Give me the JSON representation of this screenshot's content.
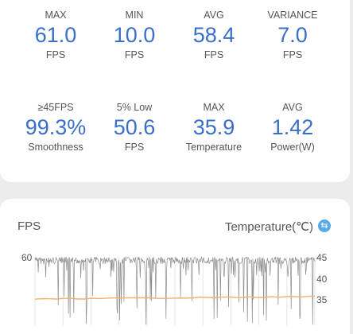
{
  "stats_row1": [
    {
      "label": "MAX",
      "value": "61.0",
      "unit": "FPS"
    },
    {
      "label": "MIN",
      "value": "10.0",
      "unit": "FPS"
    },
    {
      "label": "AVG",
      "value": "58.4",
      "unit": "FPS"
    },
    {
      "label": "VARIANCE",
      "value": "7.0",
      "unit": "FPS"
    }
  ],
  "stats_row2": [
    {
      "label": "≥45FPS",
      "value": "99.3%",
      "unit": "Smoothness"
    },
    {
      "label": "5% Low",
      "value": "50.6",
      "unit": "FPS"
    },
    {
      "label": "MAX",
      "value": "35.9",
      "unit": "Temperature"
    },
    {
      "label": "AVG",
      "value": "1.42",
      "unit": "Power(W)"
    }
  ],
  "chart": {
    "left_title": "FPS",
    "right_title": "Temperature(℃)",
    "left_axis_label": "60",
    "right_axis_labels": [
      "45",
      "40",
      "35"
    ],
    "fps_color": "#8c8c8c",
    "temp_color": "#f0b070",
    "icon": "info-icon"
  },
  "chart_data": {
    "type": "line",
    "series": [
      {
        "name": "FPS",
        "summary": {
          "max": 61.0,
          "min": 10.0,
          "avg": 58.4
        }
      },
      {
        "name": "Temperature(℃)",
        "summary": {
          "max": 35.9
        }
      }
    ]
  }
}
